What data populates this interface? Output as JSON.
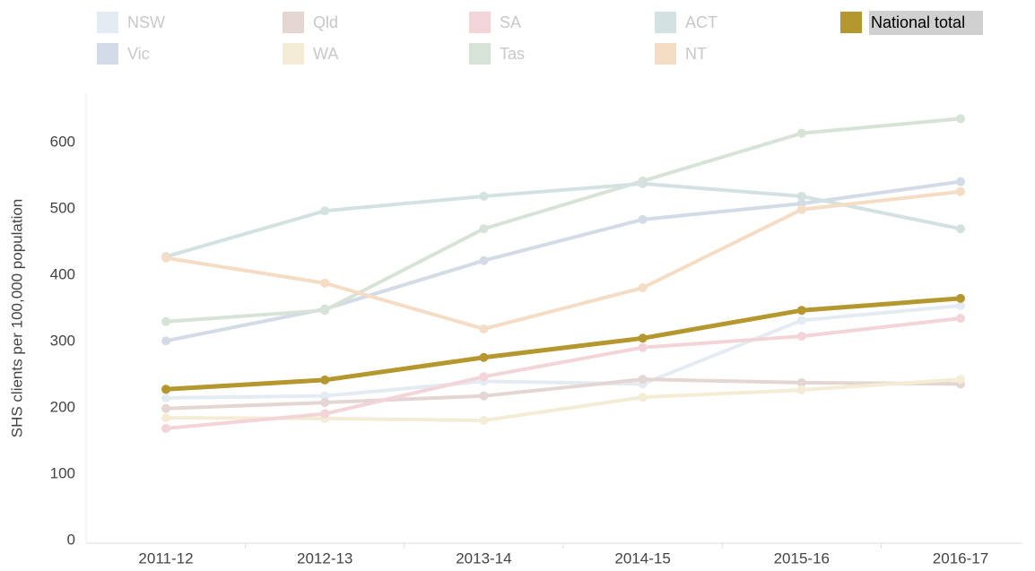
{
  "chart_data": {
    "type": "line",
    "y_label": "SHS clients per 100,000 population",
    "categories": [
      "2011-12",
      "2012-13",
      "2013-14",
      "2014-15",
      "2015-16",
      "2016-17"
    ],
    "ylim": [
      0,
      650
    ],
    "yticks": [
      0,
      100,
      200,
      300,
      400,
      500,
      600
    ],
    "highlight": "National total",
    "series": [
      {
        "name": "NSW",
        "color": "#e4ebf3",
        "values": [
          215,
          218,
          240,
          236,
          332,
          354
        ]
      },
      {
        "name": "Vic",
        "color": "#d3dbe6",
        "values": [
          301,
          349,
          422,
          484,
          508,
          541
        ]
      },
      {
        "name": "Qld",
        "color": "#e3d6d3",
        "values": [
          199,
          208,
          218,
          243,
          238,
          236
        ]
      },
      {
        "name": "WA",
        "color": "#f5ecd5",
        "values": [
          185,
          184,
          181,
          216,
          227,
          243
        ]
      },
      {
        "name": "SA",
        "color": "#f3d4d8",
        "values": [
          169,
          191,
          247,
          291,
          308,
          335
        ]
      },
      {
        "name": "Tas",
        "color": "#d6e3d6",
        "values": [
          330,
          347,
          470,
          542,
          614,
          636
        ]
      },
      {
        "name": "ACT",
        "color": "#d3e2e1",
        "values": [
          428,
          497,
          519,
          538,
          519,
          470
        ]
      },
      {
        "name": "NT",
        "color": "#f5dcc5",
        "values": [
          426,
          388,
          319,
          381,
          499,
          526
        ]
      },
      {
        "name": "National total",
        "color": "#b5972f",
        "values": [
          228,
          242,
          276,
          305,
          347,
          365
        ]
      }
    ]
  }
}
